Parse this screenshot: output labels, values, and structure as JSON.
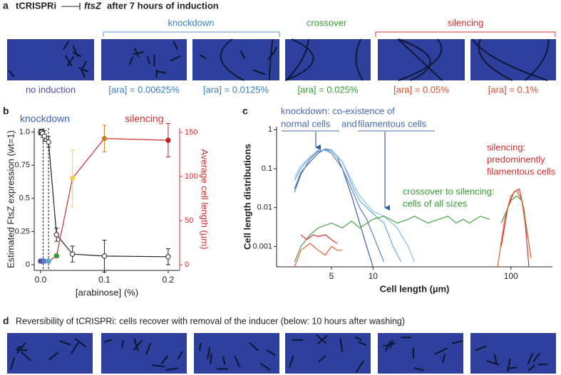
{
  "panel_a": {
    "label": "a",
    "title": {
      "prefix": "tCRISPRi",
      "gene": "ftsZ",
      "suffix": "after 7 hours of induction"
    },
    "groups": [
      "knockdown",
      "crossover",
      "silencing"
    ],
    "captions": [
      "no induction",
      "[ara] = 0.00625%",
      "[ara] = 0.0125%",
      "[ara] = 0.025%",
      "[ara] = 0.05%",
      "[ara] = 0.1%"
    ]
  },
  "panel_d": {
    "label": "d",
    "text": "Reversibility of tCRISPRi: cells recover with removal of the inducer (below: 10 hours after washing)"
  },
  "chart_data": [
    {
      "type": "line",
      "label": "b",
      "annotations": [
        {
          "text": "knockdown",
          "color": "#3f5fae"
        },
        {
          "text": "silencing",
          "color": "#d03030"
        }
      ],
      "x_label": "[arabinose] (%)",
      "y_label": "Estimated FtsZ expression (wt=1)",
      "y2_label": "Average cell length (µm)",
      "xlim": [
        -0.01,
        0.218
      ],
      "xticks": [
        {
          "value": 0,
          "label": "0.0"
        },
        0.1,
        0.2
      ],
      "ylim": [
        -0.043,
        1.03
      ],
      "yticks": [
        0,
        0.25,
        0.5,
        0.75,
        {
          "value": 1,
          "label": "1.0"
        }
      ],
      "y2lim": [
        -6.5,
        154.8
      ],
      "y2ticks": [
        0,
        50,
        100,
        150
      ],
      "y2_color": "#d03030",
      "vlines": [
        0.004,
        0.0125
      ],
      "series": [
        {
          "color": "#222222",
          "marker": "open",
          "x": [
            0,
            0.0016,
            0.003,
            0.006,
            0.0125,
            0.025,
            0.05,
            0.1,
            0.2
          ],
          "values": [
            1,
            1,
            0.99,
            0.97,
            0.925,
            0.226,
            0.08,
            0.065,
            0.06
          ],
          "errors": [
            0.02,
            0.02,
            0.03,
            0.04,
            0.04,
            0.05,
            0.06,
            0.12,
            0.06
          ]
        },
        {
          "axis": "y2",
          "color": "#d03030",
          "marker": "filled",
          "x": [
            0,
            0.003,
            0.006,
            0.0125,
            0.025,
            0.05,
            0.1,
            0.2
          ],
          "values": [
            4,
            4,
            4,
            4,
            10,
            98,
            143,
            141
          ],
          "errors": [
            1,
            1,
            1,
            1,
            2,
            32,
            15,
            19
          ],
          "point_colors": [
            "#5a3d9a",
            "#4a5aa8",
            "#5a7fc0",
            "#5aa3d0",
            "#3a9a3a",
            "#f0d050",
            "#d08020",
            "#c02020"
          ]
        }
      ]
    },
    {
      "type": "line",
      "label": "c",
      "xscale": "log",
      "yscale": "log",
      "annotations": [
        {
          "text": "knockdown: co-existence of",
          "color": "#4a6ab0"
        },
        {
          "text": "normal cells",
          "color": "#4a6ab0"
        },
        {
          "text": "and",
          "color": "#4a6ab0"
        },
        {
          "text": "filamentous cells",
          "color": "#4a6ab0"
        },
        {
          "text": "silencing:",
          "color": "#d03030"
        },
        {
          "text": "predominently",
          "color": "#d03030"
        },
        {
          "text": "filamentous cells",
          "color": "#d03030"
        },
        {
          "text": "crossover to silencing:",
          "color": "#3a9a3a"
        },
        {
          "text": "cells of all sizes",
          "color": "#3a9a3a"
        }
      ],
      "x_label": "Cell length (µm)",
      "y_label": "Cell length distributions",
      "xlim": [
        2,
        200
      ],
      "xticks": [
        5,
        10,
        100
      ],
      "ylim": [
        0.0003,
        1.2
      ],
      "yticks": [
        0.001,
        0.01,
        0.1,
        1
      ],
      "series": [
        {
          "color": "#3a5fa8",
          "x": [
            2.7,
            3,
            3.5,
            4,
            4.5,
            5,
            5.5,
            6,
            7,
            8,
            9,
            10
          ],
          "values": [
            0.03,
            0.08,
            0.15,
            0.25,
            0.32,
            0.3,
            0.2,
            0.1,
            0.02,
            0.004,
            0.001,
            0.0003
          ]
        },
        {
          "color": "#5a7fc0",
          "x": [
            2.7,
            3,
            3.5,
            4,
            4.5,
            5,
            6,
            7,
            8,
            9,
            10,
            12
          ],
          "values": [
            0.025,
            0.07,
            0.18,
            0.28,
            0.3,
            0.25,
            0.1,
            0.03,
            0.01,
            0.005,
            0.002,
            0.0004
          ]
        },
        {
          "color": "#6aa8d8",
          "x": [
            2.7,
            3,
            3.5,
            4,
            5,
            6,
            7,
            8,
            10,
            12,
            14,
            16
          ],
          "values": [
            0.05,
            0.1,
            0.2,
            0.3,
            0.3,
            0.15,
            0.04,
            0.015,
            0.007,
            0.004,
            0.001,
            0.0004
          ]
        },
        {
          "color": "#8ac0e8",
          "x": [
            2.7,
            3,
            4,
            5,
            6,
            7,
            8,
            10,
            12,
            15,
            18,
            20
          ],
          "values": [
            0.06,
            0.12,
            0.3,
            0.28,
            0.15,
            0.05,
            0.02,
            0.008,
            0.006,
            0.003,
            0.001,
            0.0004
          ]
        },
        {
          "color": "#4aa04a",
          "x": [
            2.7,
            3,
            3.5,
            4,
            5,
            6,
            7,
            8,
            10,
            12,
            15,
            18,
            20,
            25,
            30,
            35,
            40,
            45,
            50,
            60,
            70
          ],
          "values": [
            0.0004,
            0.001,
            0.002,
            0.003,
            0.004,
            0.003,
            0.0045,
            0.003,
            0.005,
            0.006,
            0.004,
            0.005,
            0.006,
            0.004,
            0.005,
            0.006,
            0.004,
            0.005,
            0.004,
            0.006,
            0.005
          ]
        },
        {
          "color": "#4aa04a",
          "x": [
            85,
            100,
            110,
            120,
            130
          ],
          "values": [
            0.004,
            0.015,
            0.02,
            0.015,
            0.002
          ]
        },
        {
          "color": "#d03030",
          "x": [
            3,
            3.3,
            3.7,
            4,
            4.5,
            5,
            5.5
          ],
          "values": [
            0.002,
            0.0015,
            0.002,
            0.0018,
            0.002,
            0.0015,
            0.0012
          ]
        },
        {
          "color": "#e06030",
          "x": [
            2.7,
            3,
            3.5,
            4,
            4.5,
            5,
            5.5,
            6
          ],
          "values": [
            0.0003,
            0.0008,
            0.0012,
            0.0008,
            0.0006,
            0.001,
            0.0008,
            0.0008
          ]
        },
        {
          "color": "#d03030",
          "x": [
            85,
            95,
            105,
            115,
            125,
            135
          ],
          "values": [
            0.001,
            0.01,
            0.025,
            0.03,
            0.008,
            0.0003
          ]
        },
        {
          "color": "#e06030",
          "x": [
            80,
            90,
            100,
            110,
            120,
            130,
            140
          ],
          "values": [
            0.0003,
            0.005,
            0.02,
            0.028,
            0.015,
            0.003,
            0.0005
          ]
        }
      ]
    }
  ]
}
